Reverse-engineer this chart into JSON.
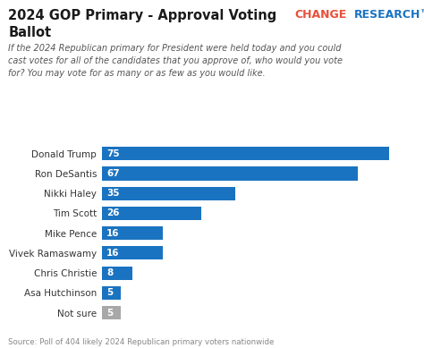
{
  "title_line1": "2024 GOP Primary - Approval Voting",
  "title_line2": "Ballot",
  "brand_change": "CHANGE",
  "brand_research": "RESEARCH™",
  "subtitle": "If the 2024 Republican primary for President were held today and you could\ncast votes for all of the candidates that you approve of, who would you vote\nfor? You may vote for as many or as few as you would like.",
  "source": "Source: Poll of 404 likely 2024 Republican primary voters nationwide",
  "categories": [
    "Donald Trump",
    "Ron DeSantis",
    "Nikki Haley",
    "Tim Scott",
    "Mike Pence",
    "Vivek Ramaswamy",
    "Chris Christie",
    "Asa Hutchinson",
    "Not sure"
  ],
  "values": [
    75,
    67,
    35,
    26,
    16,
    16,
    8,
    5,
    5
  ],
  "bar_colors": [
    "#1a73c1",
    "#1a73c1",
    "#1a73c1",
    "#1a73c1",
    "#1a73c1",
    "#1a73c1",
    "#1a73c1",
    "#1a73c1",
    "#a8a8a8"
  ],
  "title_color": "#1a1a1a",
  "brand_change_color": "#e8503a",
  "brand_research_color": "#1a73c1",
  "subtitle_color": "#555555",
  "source_color": "#888888",
  "background_color": "#ffffff",
  "xlim": [
    0,
    82
  ],
  "bar_label_color": "#ffffff",
  "label_color": "#333333"
}
